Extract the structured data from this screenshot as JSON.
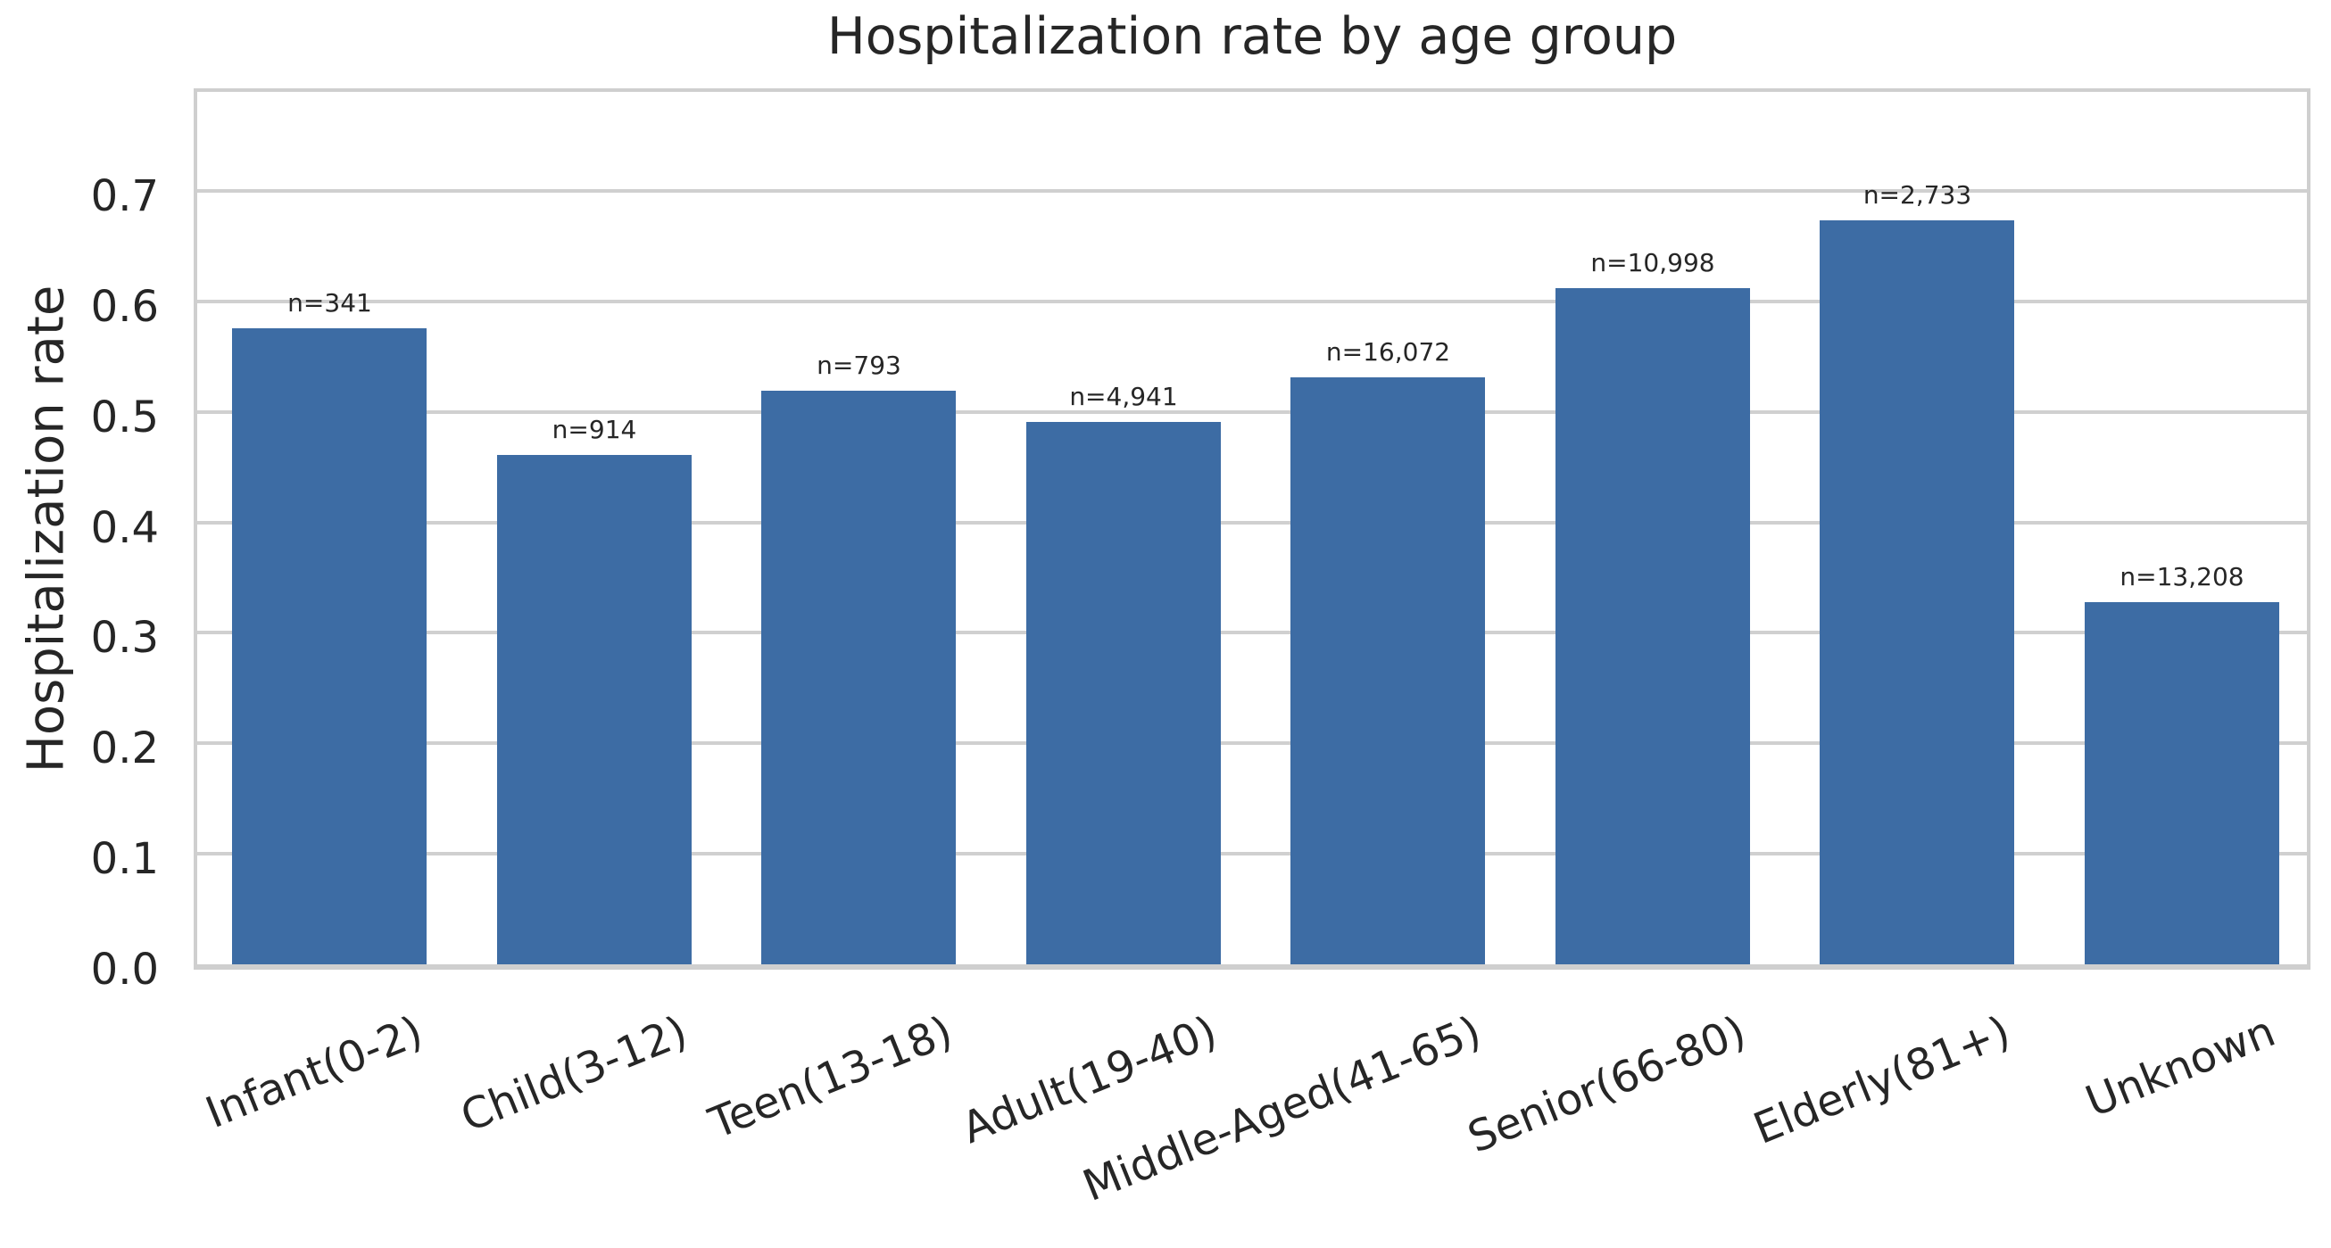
{
  "figure": {
    "title": "Hospitalization rate by age group",
    "ylabel": "Hospitalization rate"
  },
  "chart_data": {
    "type": "bar",
    "title": "Hospitalization rate by age group",
    "xlabel": "",
    "ylabel": "Hospitalization rate",
    "categories": [
      "Infant(0-2)",
      "Child(3-12)",
      "Teen(13-18)",
      "Adult(19-40)",
      "Middle-Aged(41-65)",
      "Senior(66-80)",
      "Elderly(81+)",
      "Unknown"
    ],
    "values": [
      0.576,
      0.461,
      0.519,
      0.491,
      0.531,
      0.612,
      0.673,
      0.328
    ],
    "bar_labels": [
      "n=341",
      "n=914",
      "n=793",
      "n=4,941",
      "n=16,072",
      "n=10,998",
      "n=2,733",
      "n=13,208"
    ],
    "sample_sizes": [
      341,
      914,
      793,
      4941,
      16072,
      10998,
      2733,
      13208
    ],
    "ytick_labels": [
      "0.0",
      "0.1",
      "0.2",
      "0.3",
      "0.4",
      "0.5",
      "0.6",
      "0.7"
    ],
    "yticks": [
      0.0,
      0.1,
      0.2,
      0.3,
      0.4,
      0.5,
      0.6,
      0.7
    ],
    "ylim": [
      0,
      0.798
    ],
    "grid": "horizontal",
    "legend": "none",
    "colors": {
      "bar": "#3d6ca4",
      "grid": "#d0d0d0",
      "spine": "#cfcfcf",
      "text": "#262626",
      "background": "#ffffff"
    }
  }
}
